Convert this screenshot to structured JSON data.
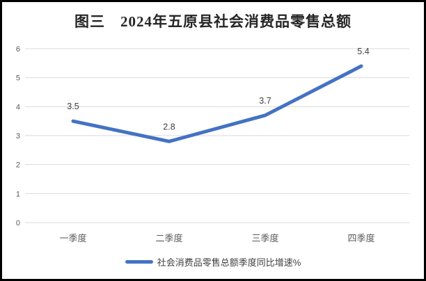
{
  "chart_data": {
    "type": "line",
    "title": "图三　2024年五原县社会消费品零售总额",
    "categories": [
      "一季度",
      "二季度",
      "三季度",
      "四季度"
    ],
    "series": [
      {
        "name": "社会消费品零售总额季度同比增速%",
        "values": [
          3.5,
          2.8,
          3.7,
          5.4
        ]
      }
    ],
    "data_labels": [
      "3.5",
      "2.8",
      "3.7",
      "5.4"
    ],
    "xlabel": "",
    "ylabel": "",
    "ylim": [
      0,
      6
    ],
    "yticks": [
      0,
      1,
      2,
      3,
      4,
      5,
      6
    ],
    "grid": true,
    "legend_position": "bottom",
    "colors": {
      "line": "#4472C4",
      "gridline": "#D9D9D9",
      "axis_tick_label": "#595959",
      "x_tick_label": "#595959",
      "data_label": "#404040",
      "title": "#262626",
      "background": "#FFFFFF",
      "border": "#000000"
    }
  },
  "legend": {
    "label": "社会消费品零售总额季度同比增速%"
  }
}
